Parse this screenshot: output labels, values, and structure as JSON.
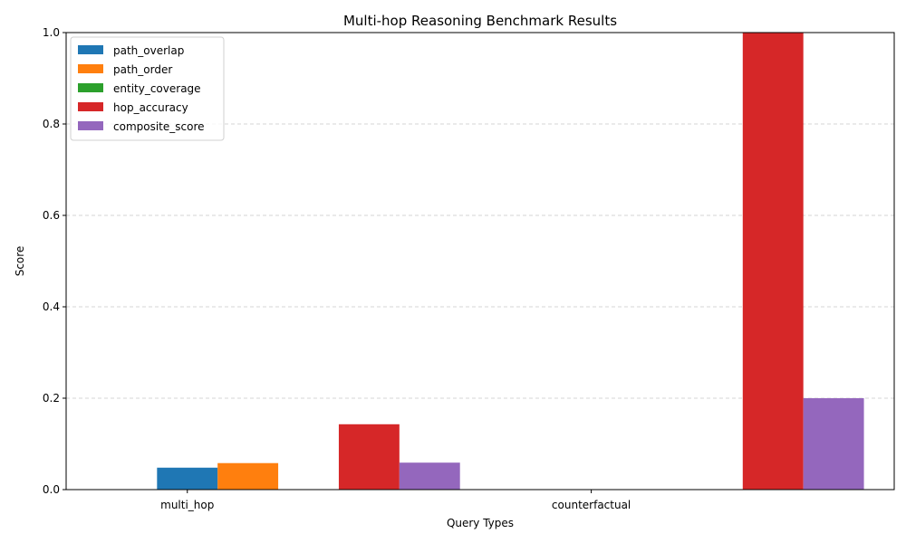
{
  "chart_data": {
    "type": "bar",
    "title": "Multi-hop Reasoning Benchmark Results",
    "xlabel": "Query Types",
    "ylabel": "Score",
    "ylim": [
      0,
      1.0
    ],
    "yticks": [
      "0.0",
      "0.2",
      "0.4",
      "0.6",
      "0.8",
      "1.0"
    ],
    "grid": "y-dashed",
    "legend_position": "top-left",
    "categories": [
      "multi_hop",
      "counterfactual"
    ],
    "series": [
      {
        "name": "path_overlap",
        "color": "#1f77b4",
        "values": [
          0.048,
          0.0
        ]
      },
      {
        "name": "path_order",
        "color": "#ff7f0e",
        "values": [
          0.058,
          0.0
        ]
      },
      {
        "name": "entity_coverage",
        "color": "#2ca02c",
        "values": [
          0.0,
          0.0
        ]
      },
      {
        "name": "hop_accuracy",
        "color": "#d62728",
        "values": [
          0.143,
          1.0
        ]
      },
      {
        "name": "composite_score",
        "color": "#9467bd",
        "values": [
          0.059,
          0.2
        ]
      }
    ]
  }
}
